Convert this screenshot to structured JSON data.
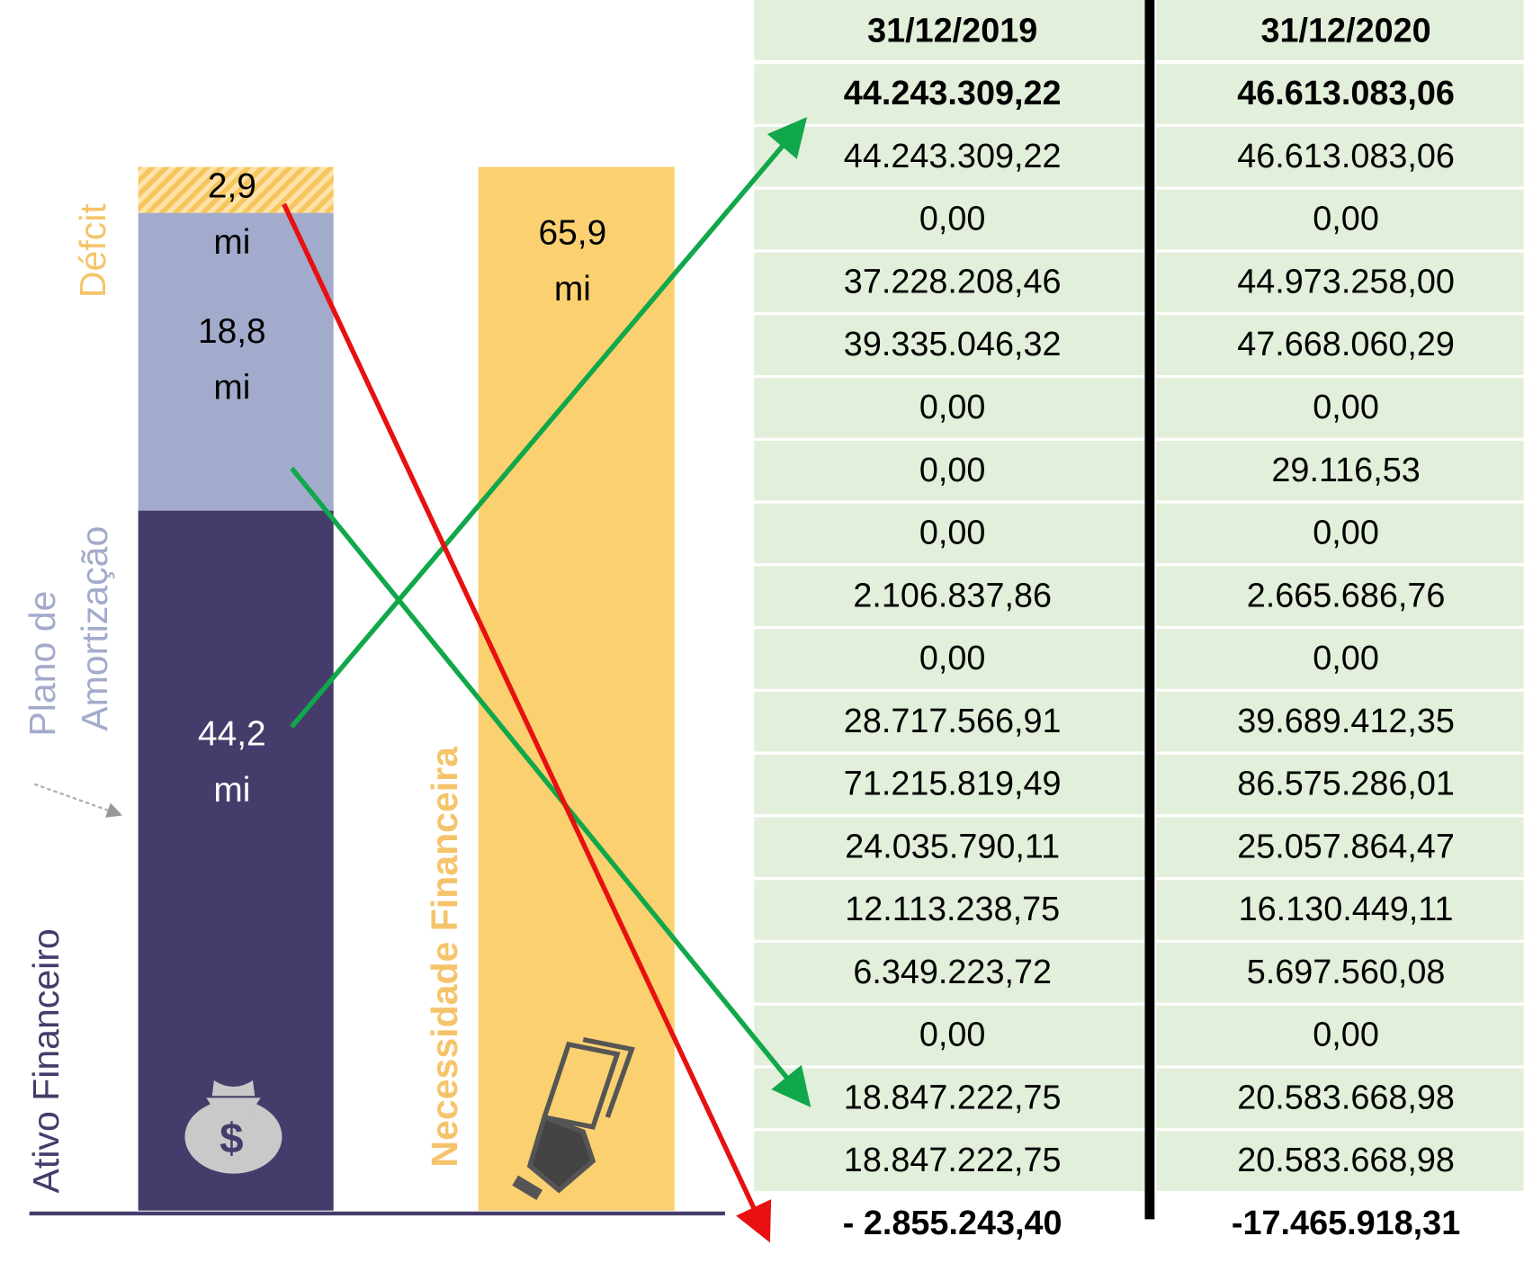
{
  "bars": [
    {
      "name": "Ativo Financeiro",
      "value": 44.2,
      "value_label": "44,2",
      "unit": "mi",
      "color": "#463c6b"
    },
    {
      "name_lines": [
        "Plano de",
        "Amortização"
      ],
      "value": 18.8,
      "value_label": "18,8",
      "unit": "mi",
      "color": "#a3abcc"
    },
    {
      "name": "Défcit",
      "value": 2.9,
      "value_label": "2,9",
      "unit": "mi",
      "color": "#fcd57f"
    },
    {
      "name": "Necessidade Financeira",
      "value": 65.9,
      "value_label": "65,9",
      "unit": "mi",
      "color": "#fad071"
    }
  ],
  "table": {
    "header": [
      "31/12/2019",
      "31/12/2020"
    ],
    "rows": [
      [
        "44.243.309,22",
        "46.613.083,06"
      ],
      [
        "44.243.309,22",
        "46.613.083,06"
      ],
      [
        "0,00",
        "0,00"
      ],
      [
        "37.228.208,46",
        "44.973.258,00"
      ],
      [
        "39.335.046,32",
        "47.668.060,29"
      ],
      [
        "0,00",
        "0,00"
      ],
      [
        "0,00",
        "29.116,53"
      ],
      [
        "0,00",
        "0,00"
      ],
      [
        "2.106.837,86",
        "2.665.686,76"
      ],
      [
        "0,00",
        "0,00"
      ],
      [
        "28.717.566,91",
        "39.689.412,35"
      ],
      [
        "71.215.819,49",
        "86.575.286,01"
      ],
      [
        "24.035.790,11",
        "25.057.864,47"
      ],
      [
        "12.113.238,75",
        "16.130.449,11"
      ],
      [
        "6.349.223,72",
        "5.697.560,08"
      ],
      [
        "0,00",
        "0,00"
      ],
      [
        "18.847.222,75",
        "20.583.668,98"
      ],
      [
        "18.847.222,75",
        "20.583.668,98"
      ],
      [
        "- 2.855.243,40",
        "-17.465.918,31"
      ]
    ]
  }
}
